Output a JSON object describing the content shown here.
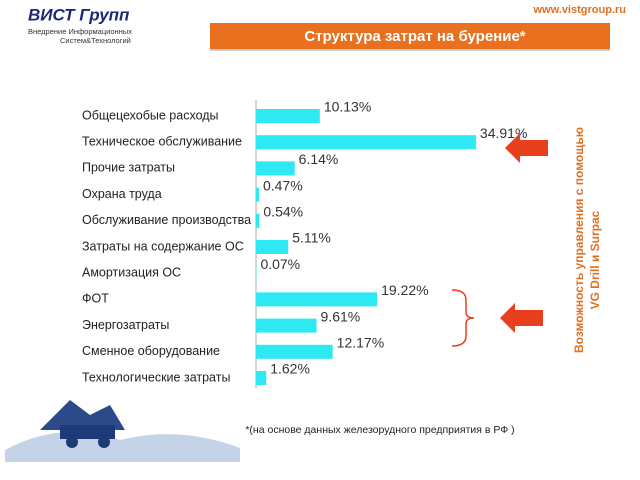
{
  "header": {
    "company": "ВИСТ Групп",
    "tagline_1": "Внедрение Информационных",
    "tagline_2": "Систем&Технологий",
    "url": "www.vistgroup.ru"
  },
  "side_note": {
    "line_1": "Возможность управления с помощью",
    "line_2": "VG Drill и Surpac"
  },
  "footnote": "*(на основе данных железорудного предприятия в РФ )",
  "chart_data": {
    "type": "bar",
    "orientation": "horizontal",
    "title": "Структура затрат на бурение*",
    "categories": [
      "Общецехобые расходы",
      "Техническое обслуживание",
      "Прочие затраты",
      "Охрана труда",
      "Обслуживание производства",
      "Затраты на содержание ОС",
      "Амортизация ОС",
      "ФОТ",
      "Энергозатраты",
      "Сменное оборудование",
      "Технологические затраты"
    ],
    "values": [
      10.13,
      34.91,
      6.14,
      0.47,
      0.54,
      5.11,
      0.07,
      19.22,
      9.61,
      12.17,
      1.62
    ],
    "value_labels": [
      "10.13%",
      "34.91%",
      "6.14%",
      "0.47%",
      "0.54%",
      "5.11%",
      "0.07%",
      "19.22%",
      "9.61%",
      "12.17%",
      "1.62%"
    ],
    "color": "#2ee8f2"
  }
}
